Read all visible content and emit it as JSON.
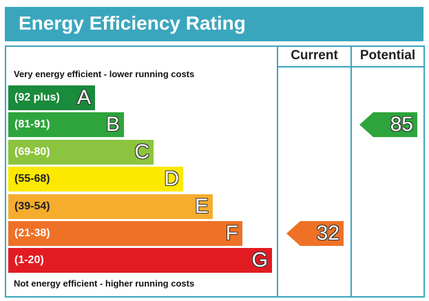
{
  "header": {
    "title": "Energy Efficiency Rating"
  },
  "columns": {
    "current": "Current",
    "potential": "Potential"
  },
  "captions": {
    "top": "Very energy efficient - lower running costs",
    "bottom": "Not energy efficient - higher running costs"
  },
  "chart_data": {
    "type": "bar",
    "title": "Energy Efficiency Rating",
    "bands": [
      {
        "letter": "A",
        "range": "(92 plus)",
        "color": "#1a8a3c"
      },
      {
        "letter": "B",
        "range": "(81-91)",
        "color": "#2da43c"
      },
      {
        "letter": "C",
        "range": "(69-80)",
        "color": "#8cc43f"
      },
      {
        "letter": "D",
        "range": "(55-68)",
        "color": "#fde800"
      },
      {
        "letter": "E",
        "range": "(39-54)",
        "color": "#f6ad2e"
      },
      {
        "letter": "F",
        "range": "(21-38)",
        "color": "#ee7126"
      },
      {
        "letter": "G",
        "range": "(1-20)",
        "color": "#e21b23"
      }
    ],
    "current": {
      "value": 32,
      "band": "F",
      "color": "#ee7126"
    },
    "potential": {
      "value": 85,
      "band": "B",
      "color": "#2da43c"
    }
  }
}
